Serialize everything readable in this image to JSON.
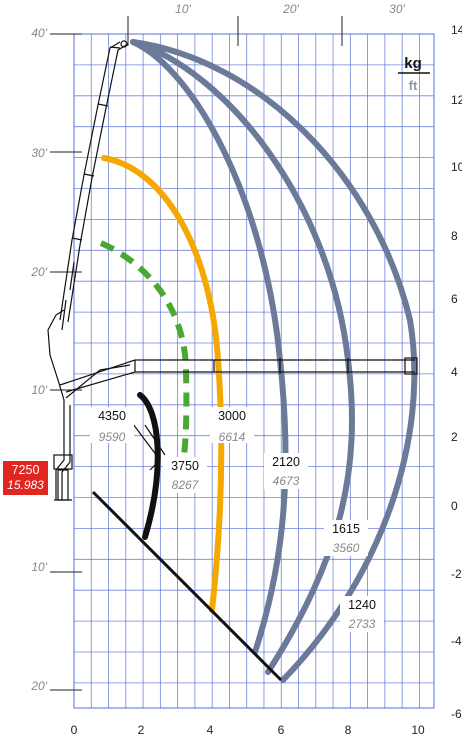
{
  "units": {
    "kg": "kg",
    "ft": "ft"
  },
  "axes": {
    "x_m_ticks": [
      "0",
      "2",
      "4",
      "6",
      "8",
      "10"
    ],
    "x_ft_ticks": [
      "10'",
      "20'",
      "30'"
    ],
    "y_m_ticks": [
      "14",
      "12",
      "10",
      "8",
      "6",
      "4",
      "2",
      "0",
      "-2",
      "-4",
      "-6"
    ],
    "y_ft_ticks": [
      "40'",
      "30'",
      "20'",
      "10'",
      "10'",
      "20'"
    ]
  },
  "max_capacity": {
    "kg": "7250",
    "lb": "15.983"
  },
  "zones": [
    {
      "kg": "4350",
      "lb": "9590"
    },
    {
      "kg": "3750",
      "lb": "8267"
    },
    {
      "kg": "3000",
      "lb": "6614"
    },
    {
      "kg": "2120",
      "lb": "4673"
    },
    {
      "kg": "1615",
      "lb": "3560"
    },
    {
      "kg": "1240",
      "lb": "2733"
    }
  ],
  "colors": {
    "grid": "#5a6fd6",
    "envelope": "#6b7a99",
    "yellow": "#f5a800",
    "green": "#4aa832",
    "black": "#111111",
    "red": "#e0261f"
  }
}
